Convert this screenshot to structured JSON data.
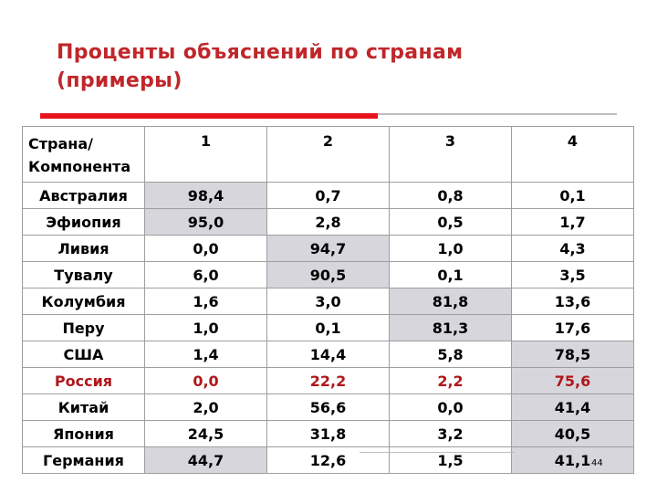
{
  "title_line1": "Проценты объяснений по странам",
  "title_line2": "(примеры)",
  "table": {
    "header": {
      "country_line1": "Страна/",
      "country_line2": "Компонента",
      "cols": [
        "1",
        "2",
        "3",
        "4"
      ]
    },
    "rows": [
      {
        "name": "Австралия",
        "values": [
          "98,4",
          "0,7",
          "0,8",
          "0,1"
        ],
        "highlight": [
          true,
          false,
          false,
          false
        ],
        "red": false
      },
      {
        "name": "Эфиопия",
        "values": [
          "95,0",
          "2,8",
          "0,5",
          "1,7"
        ],
        "highlight": [
          true,
          false,
          false,
          false
        ],
        "red": false
      },
      {
        "name": "Ливия",
        "values": [
          "0,0",
          "94,7",
          "1,0",
          "4,3"
        ],
        "highlight": [
          false,
          true,
          false,
          false
        ],
        "red": false
      },
      {
        "name": "Тувалу",
        "values": [
          "6,0",
          "90,5",
          "0,1",
          "3,5"
        ],
        "highlight": [
          false,
          true,
          false,
          false
        ],
        "red": false
      },
      {
        "name": "Колумбия",
        "values": [
          "1,6",
          "3,0",
          "81,8",
          "13,6"
        ],
        "highlight": [
          false,
          false,
          true,
          false
        ],
        "red": false
      },
      {
        "name": "Перу",
        "values": [
          "1,0",
          "0,1",
          "81,3",
          "17,6"
        ],
        "highlight": [
          false,
          false,
          true,
          false
        ],
        "red": false
      },
      {
        "name": "США",
        "values": [
          "1,4",
          "14,4",
          "5,8",
          "78,5"
        ],
        "highlight": [
          false,
          false,
          false,
          true
        ],
        "red": false
      },
      {
        "name": "Россия",
        "values": [
          "0,0",
          "22,2",
          "2,2",
          "75,6"
        ],
        "highlight": [
          false,
          false,
          false,
          true
        ],
        "red": true
      },
      {
        "name": "Китай",
        "values": [
          "2,0",
          "56,6",
          "0,0",
          "41,4"
        ],
        "highlight": [
          false,
          false,
          false,
          true
        ],
        "red": false
      },
      {
        "name": "Япония",
        "values": [
          "24,5",
          "31,8",
          "3,2",
          "40,5"
        ],
        "highlight": [
          false,
          false,
          false,
          true
        ],
        "red": false
      },
      {
        "name": "Германия",
        "values": [
          "44,7",
          "12,6",
          "1,5",
          "41,1"
        ],
        "highlight": [
          true,
          false,
          false,
          true
        ],
        "red": false
      }
    ]
  },
  "page_number": "44",
  "colors": {
    "title": "#c0262a",
    "accent_rule": "#e8141c",
    "highlight_cell": "#d6d6dc",
    "russia_text": "#b0171c"
  }
}
